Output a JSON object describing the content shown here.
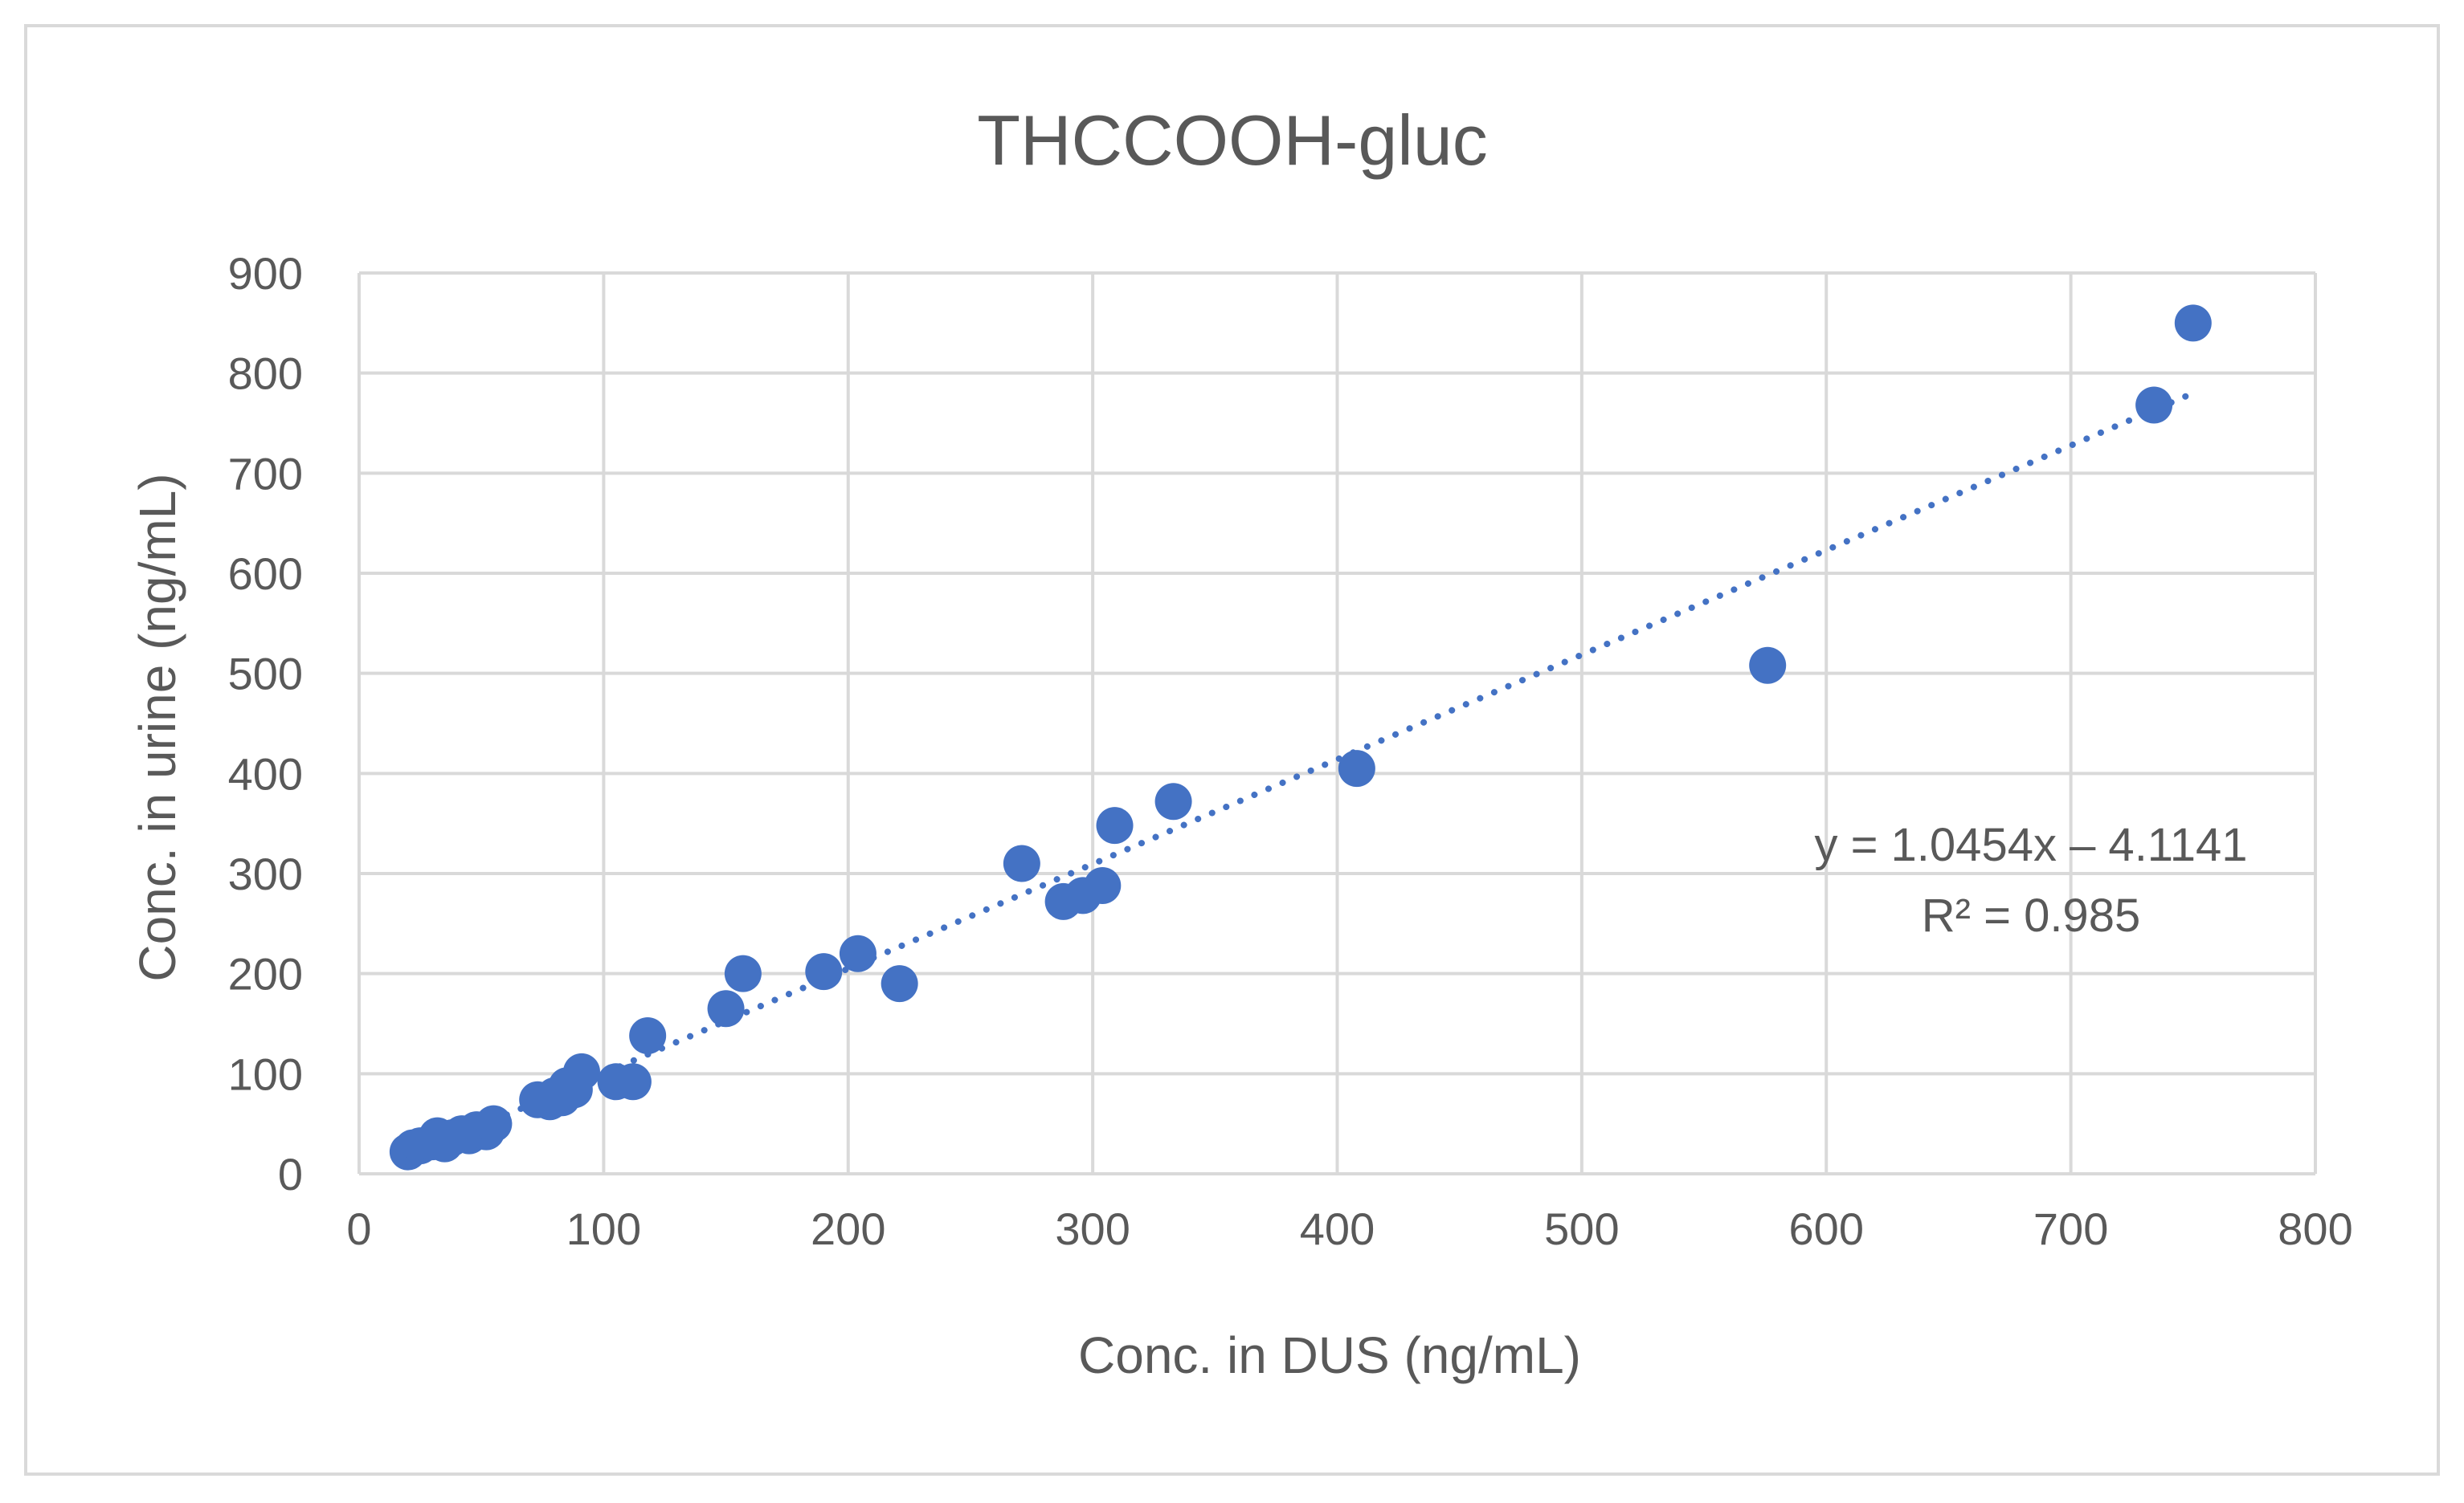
{
  "chart_data": {
    "type": "scatter",
    "title": "THCCOOH-gluc",
    "xlabel": "Conc. in DUS (ng/mL)",
    "ylabel": "Conc. in urine (ng/mL)",
    "xlim": [
      0,
      800
    ],
    "ylim": [
      0,
      900
    ],
    "xticks": [
      0,
      100,
      200,
      300,
      400,
      500,
      600,
      700,
      800
    ],
    "yticks": [
      0,
      100,
      200,
      300,
      400,
      500,
      600,
      700,
      800,
      900
    ],
    "grid": true,
    "colors": {
      "points": "#4472c4",
      "grid": "#d9d9d9",
      "text": "#595959"
    },
    "series": [
      {
        "name": "THCCOOH-gluc",
        "x": [
          20,
          22,
          25,
          30,
          32,
          35,
          38,
          42,
          45,
          48,
          52,
          55,
          73,
          78,
          80,
          83,
          85,
          88,
          91,
          105,
          112,
          118,
          150,
          157,
          190,
          204,
          221,
          271,
          288,
          296,
          304,
          309,
          333,
          408,
          576,
          734,
          750
        ],
        "y": [
          22,
          26,
          28,
          32,
          38,
          30,
          36,
          40,
          38,
          44,
          42,
          50,
          74,
          72,
          78,
          76,
          88,
          84,
          102,
          92,
          92,
          138,
          165,
          200,
          202,
          220,
          190,
          310,
          272,
          278,
          288,
          348,
          372,
          405,
          508,
          768,
          850
        ]
      }
    ],
    "trendline": {
      "type": "linear",
      "slope": 1.0454,
      "intercept": -4.1141,
      "x_range": [
        20,
        750
      ],
      "equation": "y = 1.0454x – 4.1141",
      "r_squared": "R² = 0.985"
    }
  }
}
